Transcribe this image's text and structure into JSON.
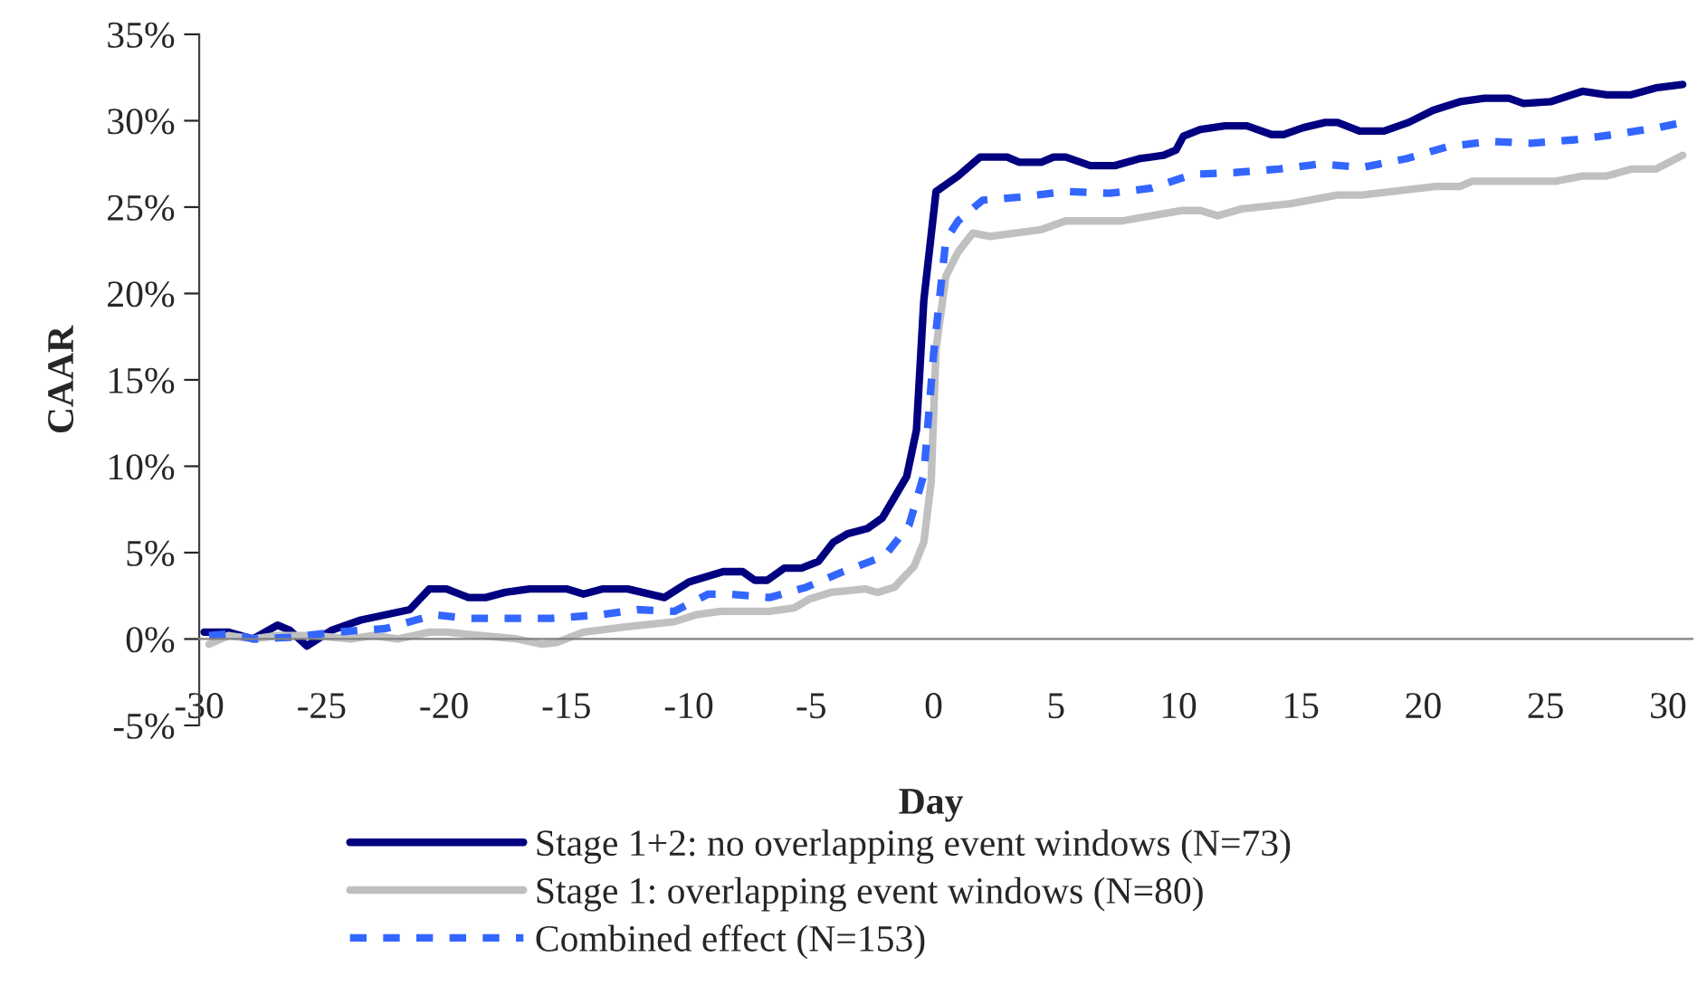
{
  "chart_data": {
    "type": "line",
    "xlabel": "Day",
    "ylabel": "CAAR",
    "xlim": [
      -30,
      31
    ],
    "xticks": [
      -30,
      -25,
      -20,
      -15,
      -10,
      -5,
      0,
      5,
      10,
      15,
      20,
      25,
      30
    ],
    "ylim": [
      -5,
      35
    ],
    "yticks": [
      {
        "value": -5,
        "label": "-5%"
      },
      {
        "value": 0,
        "label": "0%"
      },
      {
        "value": 5,
        "label": "5%"
      },
      {
        "value": 10,
        "label": "10%"
      },
      {
        "value": 15,
        "label": "15%"
      },
      {
        "value": 20,
        "label": "20%"
      },
      {
        "value": 25,
        "label": "25%"
      },
      {
        "value": 30,
        "label": "30%"
      },
      {
        "value": 35,
        "label": "35%"
      }
    ],
    "grid": false,
    "legend": "bottom",
    "series": [
      {
        "name": "Stage 1+2: no overlapping event windows (N=73)",
        "color": "#000080",
        "line_style": "solid",
        "x": [
          -29.8,
          -28.8,
          -27.8,
          -26.8,
          -26.3,
          -25.6,
          -24.6,
          -23.4,
          -22.4,
          -21.4,
          -20.6,
          -19.9,
          -19.0,
          -18.3,
          -17.5,
          -16.5,
          -15.0,
          -14.3,
          -13.5,
          -12.5,
          -11.0,
          -10.0,
          -8.6,
          -7.8,
          -7.3,
          -6.8,
          -6.1,
          -5.4,
          -4.7,
          -4.1,
          -3.5,
          -2.7,
          -2.1,
          -1.1,
          -0.7,
          -0.4,
          0.1,
          0.5,
          1.0,
          1.9,
          3.0,
          3.5,
          4.4,
          4.9,
          5.4,
          6.4,
          7.4,
          8.4,
          9.4,
          9.9,
          10.2,
          10.9,
          11.9,
          12.8,
          13.8,
          14.3,
          15.1,
          16.0,
          16.5,
          17.4,
          18.4,
          19.4,
          20.4,
          21.5,
          22.5,
          23.5,
          24.1,
          25.2,
          26.5,
          27.5,
          28.5,
          29.5,
          30.6
        ],
        "values": [
          0.4,
          0.4,
          0.0,
          0.8,
          0.5,
          -0.4,
          0.5,
          1.1,
          1.4,
          1.7,
          2.9,
          2.9,
          2.4,
          2.4,
          2.7,
          2.9,
          2.9,
          2.6,
          2.9,
          2.9,
          2.4,
          3.3,
          3.9,
          3.9,
          3.4,
          3.4,
          4.1,
          4.1,
          4.5,
          5.6,
          6.1,
          6.4,
          7.0,
          9.4,
          12.1,
          19.6,
          25.9,
          26.3,
          26.8,
          27.9,
          27.9,
          27.6,
          27.6,
          27.9,
          27.9,
          27.4,
          27.4,
          27.8,
          28.0,
          28.3,
          29.1,
          29.5,
          29.7,
          29.7,
          29.2,
          29.2,
          29.6,
          29.9,
          29.9,
          29.4,
          29.4,
          29.9,
          30.6,
          31.1,
          31.3,
          31.3,
          31.0,
          31.1,
          31.7,
          31.5,
          31.5,
          31.9,
          32.1
        ]
      },
      {
        "name": "Stage 1: overlapping event windows (N=80)",
        "color": "#c0c0c0",
        "line_style": "solid",
        "x": [
          -29.6,
          -28.8,
          -27.8,
          -26.8,
          -25.3,
          -23.8,
          -22.9,
          -21.9,
          -20.6,
          -19.9,
          -18.5,
          -17.0,
          -16.0,
          -15.4,
          -14.3,
          -12.6,
          -10.6,
          -9.7,
          -8.7,
          -6.7,
          -5.7,
          -5.1,
          -4.2,
          -2.8,
          -2.3,
          -1.6,
          -0.8,
          -0.4,
          -0.1,
          0.1,
          0.5,
          1.0,
          1.6,
          2.3,
          4.4,
          5.4,
          7.7,
          10.1,
          10.9,
          11.6,
          12.6,
          14.6,
          16.5,
          17.5,
          20.5,
          21.5,
          22.0,
          25.4,
          26.5,
          27.5,
          28.5,
          29.5,
          30.6
        ],
        "values": [
          -0.3,
          0.2,
          0.0,
          0.2,
          0.2,
          0.0,
          0.2,
          0.0,
          0.4,
          0.4,
          0.2,
          0.0,
          -0.3,
          -0.2,
          0.4,
          0.7,
          1.0,
          1.4,
          1.6,
          1.6,
          1.8,
          2.3,
          2.7,
          2.9,
          2.7,
          3.0,
          4.2,
          5.6,
          9.1,
          16.8,
          21.0,
          22.4,
          23.5,
          23.3,
          23.7,
          24.2,
          24.2,
          24.8,
          24.8,
          24.5,
          24.9,
          25.2,
          25.7,
          25.7,
          26.2,
          26.2,
          26.5,
          26.5,
          26.8,
          26.8,
          27.2,
          27.2,
          28.0
        ]
      },
      {
        "name": "Combined effect (N=153)",
        "color": "#3366ff",
        "line_style": "dashed",
        "x": [
          -29.6,
          -28.8,
          -27.7,
          -26.3,
          -24.4,
          -22.4,
          -20.4,
          -19.0,
          -15.6,
          -13.6,
          -12.1,
          -10.6,
          -9.2,
          -8.4,
          -6.7,
          -5.2,
          -3.7,
          -2.0,
          -1.0,
          -0.4,
          0.0,
          0.5,
          1.0,
          2.0,
          3.7,
          5.4,
          7.2,
          8.9,
          10.6,
          12.3,
          14.1,
          15.8,
          17.5,
          19.3,
          21.0,
          22.7,
          24.4,
          26.2,
          27.8,
          29.6,
          30.6
        ],
        "values": [
          0.2,
          0.3,
          0.0,
          0.1,
          0.4,
          0.6,
          1.4,
          1.2,
          1.2,
          1.4,
          1.7,
          1.6,
          2.6,
          2.6,
          2.4,
          3.0,
          3.9,
          4.8,
          6.6,
          9.5,
          16.5,
          23.1,
          24.2,
          25.4,
          25.6,
          25.9,
          25.8,
          26.1,
          26.9,
          27.0,
          27.2,
          27.5,
          27.3,
          27.8,
          28.5,
          28.8,
          28.7,
          28.9,
          29.2,
          29.6,
          29.9
        ]
      }
    ]
  }
}
